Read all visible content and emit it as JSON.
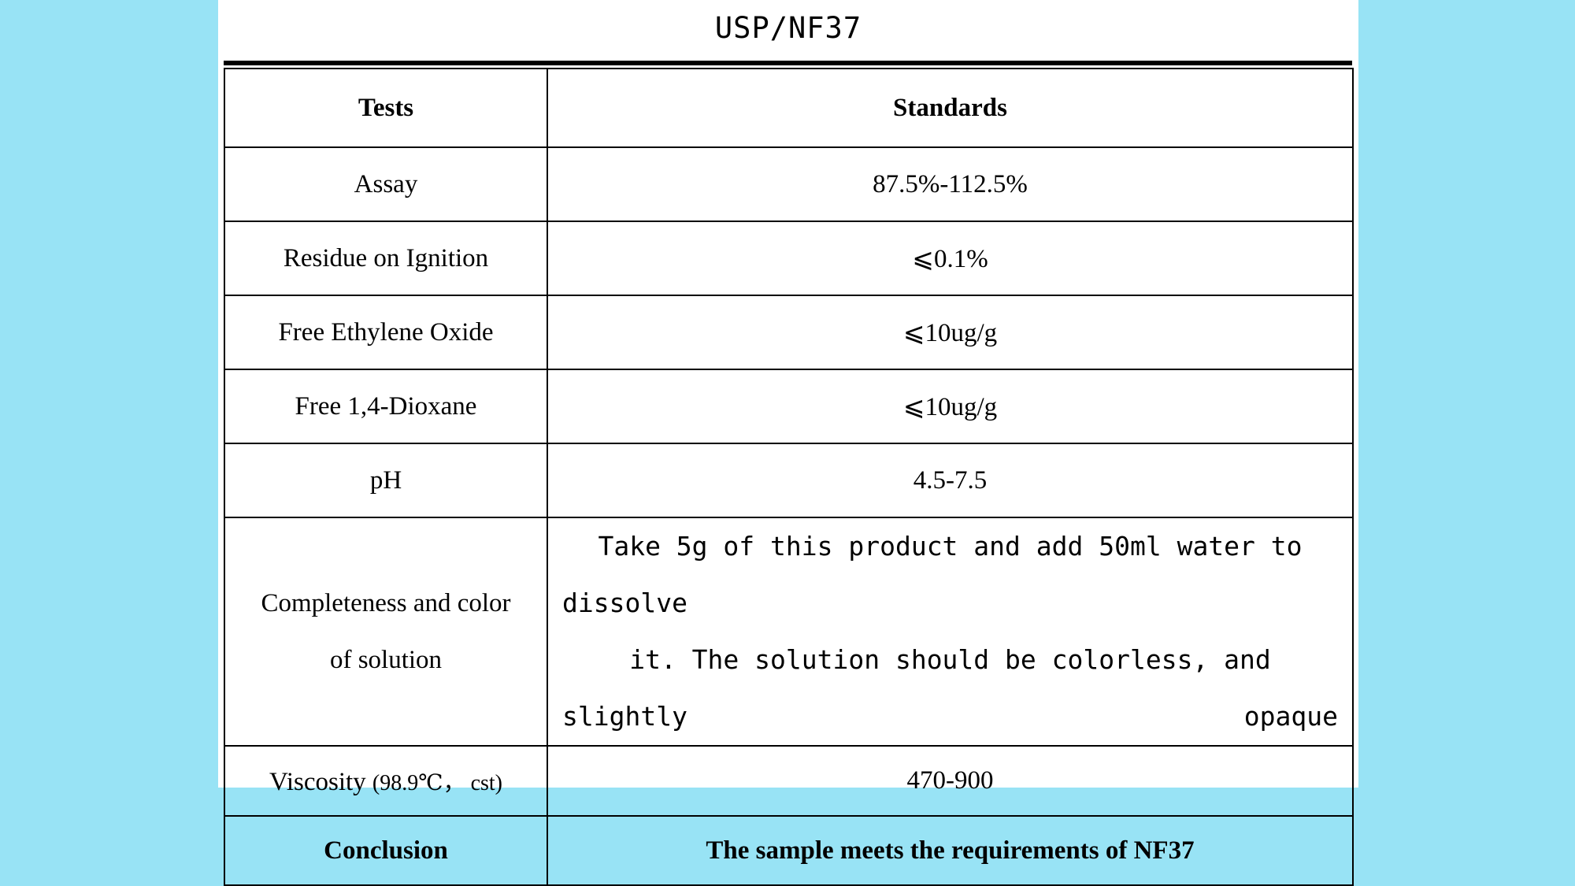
{
  "document": {
    "title": "USP/NF37"
  },
  "table": {
    "headers": {
      "tests": "Tests",
      "standards": "Standards"
    },
    "rows": [
      {
        "test": "Assay",
        "standard": "87.5%-112.5%"
      },
      {
        "test": "Residue on Ignition",
        "standard": "⩽0.1%"
      },
      {
        "test": "Free Ethylene Oxide",
        "standard": "⩽10ug/g"
      },
      {
        "test": "Free 1,4-Dioxane",
        "standard": "⩽10ug/g"
      },
      {
        "test": "pH",
        "standard": "4.5-7.5"
      },
      {
        "test_line1": "Completeness and color",
        "test_line2": "of solution",
        "standard_line1": "Take 5g of this product and add 50ml water to dissolve",
        "standard_line2": "it. The solution should be colorless, and slightly opaque"
      },
      {
        "test": "Viscosity",
        "test_unit": "(98.9℃， cst)",
        "standard": "470-900"
      }
    ],
    "conclusion": {
      "label": "Conclusion",
      "text": "The sample meets the requirements of NF37"
    }
  }
}
